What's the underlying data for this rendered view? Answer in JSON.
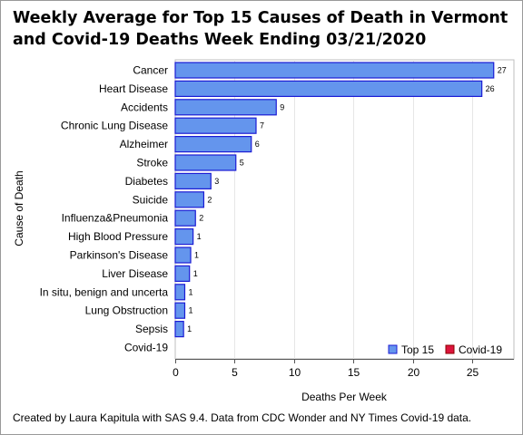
{
  "chart_data": {
    "type": "bar",
    "orientation": "horizontal",
    "title_lines": [
      "Weekly Average for Top 15 Causes of Death in Vermont",
      "and Covid-19 Deaths Week Ending 03/21/2020"
    ],
    "xlabel": "Deaths Per Week",
    "ylabel": "Cause of Death",
    "xlim": [
      0,
      28.5
    ],
    "xticks": [
      0,
      5,
      10,
      15,
      20,
      25
    ],
    "grid": true,
    "legend_position": "bottom-right",
    "categories": [
      "Cancer",
      "Heart Disease",
      "Accidents",
      "Chronic Lung Disease",
      "Alzheimer",
      "Stroke",
      "Diabetes",
      "Suicide",
      "Influenza&Pneumonia",
      "High Blood Pressure",
      "Parkinson's Disease",
      "Liver Disease",
      "In situ, benign and uncerta",
      "Lung Obstruction",
      "Sepsis",
      "Covid-19"
    ],
    "values": [
      26.8,
      25.8,
      8.5,
      6.8,
      6.4,
      5.1,
      3.0,
      2.4,
      1.7,
      1.5,
      1.3,
      1.2,
      0.8,
      0.8,
      0.7,
      0
    ],
    "value_labels": [
      "27",
      "26",
      "9",
      "7",
      "6",
      "5",
      "3",
      "2",
      "2",
      "1",
      "1",
      "1",
      "1",
      "1",
      "1",
      ""
    ],
    "groups": [
      "top15",
      "top15",
      "top15",
      "top15",
      "top15",
      "top15",
      "top15",
      "top15",
      "top15",
      "top15",
      "top15",
      "top15",
      "top15",
      "top15",
      "top15",
      "covid"
    ],
    "series": [
      {
        "name": "Top 15",
        "key": "top15",
        "color": "#6495ed",
        "border": "#1c1cd4"
      },
      {
        "name": "Covid-19",
        "key": "covid",
        "color": "#dc143c",
        "border": "#8b0000"
      }
    ]
  },
  "footnote": "Created by Laura Kapitula with SAS 9.4. Data from CDC Wonder and NY Times Covid-19 data."
}
